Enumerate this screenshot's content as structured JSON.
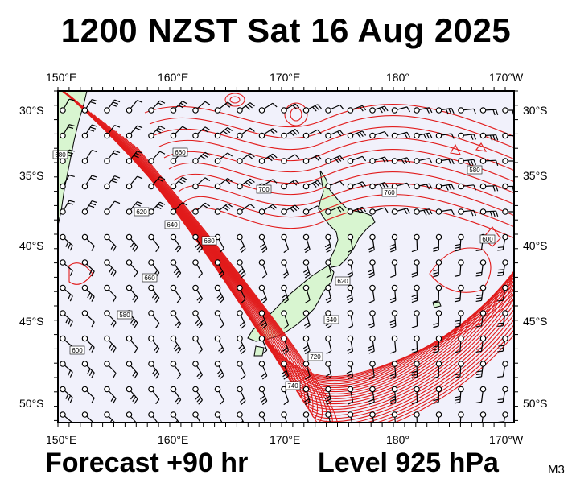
{
  "title": "1200 NZST Sat 16 Aug 2025",
  "forecast": "Forecast +90 hr",
  "level": "Level 925 hPa",
  "product_code": "M3",
  "lon_labels": [
    "150°E",
    "160°E",
    "170°E",
    "180°",
    "170°W"
  ],
  "lat_labels": [
    "30°S",
    "35°S",
    "40°S",
    "45°S",
    "50°S"
  ],
  "contour_labels": [
    "580",
    "600",
    "620",
    "640",
    "660",
    "680",
    "700",
    "720",
    "740",
    "760"
  ],
  "colors": {
    "ocean": "#f1f1fb",
    "land": "#d8f5d0",
    "contour": "#e11b1b",
    "frame": "#000000"
  },
  "chart_data": {
    "type": "map",
    "projection": "lon-lat",
    "lon_range": [
      150,
      191
    ],
    "lat_range": [
      -52,
      -28
    ],
    "variable": "geopotential height (dam) and wind barbs",
    "wind_barbs": "grid"
  }
}
